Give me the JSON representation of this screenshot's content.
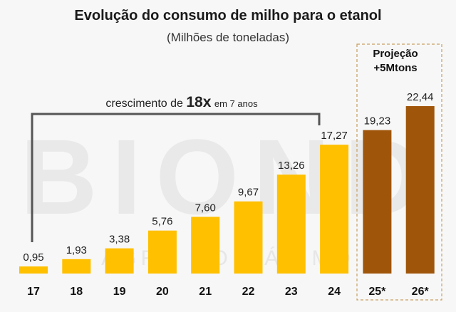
{
  "chart_data": {
    "type": "bar",
    "title": "Evolução do consumo de milho para o etanol",
    "subtitle": "(Milhões de toneladas)",
    "categories": [
      "17",
      "18",
      "19",
      "20",
      "21",
      "22",
      "23",
      "24",
      "25*",
      "26*"
    ],
    "values": [
      0.95,
      1.93,
      3.38,
      5.76,
      7.6,
      9.67,
      13.26,
      17.27,
      19.23,
      22.44
    ],
    "value_labels": [
      "0,95",
      "1,93",
      "3,38",
      "5,76",
      "7,60",
      "9,67",
      "13,26",
      "17,27",
      "19,23",
      "22,44"
    ],
    "projected_from_index": 8,
    "colors": {
      "actual": "#ffc000",
      "projected": "#a0560a",
      "bracket": "#555555",
      "projection_border": "#c8a060"
    },
    "projection_box_label_1": "Projeção",
    "projection_box_label_2": "+5Mtons",
    "growth_annotation": {
      "prefix": "crescimento de",
      "emphasis": "18x",
      "suffix": "em 7 anos"
    },
    "watermark": {
      "main": "BIOND",
      "sub": "AGRO NO MÁXIMO"
    },
    "ylim": [
      0,
      23
    ]
  }
}
